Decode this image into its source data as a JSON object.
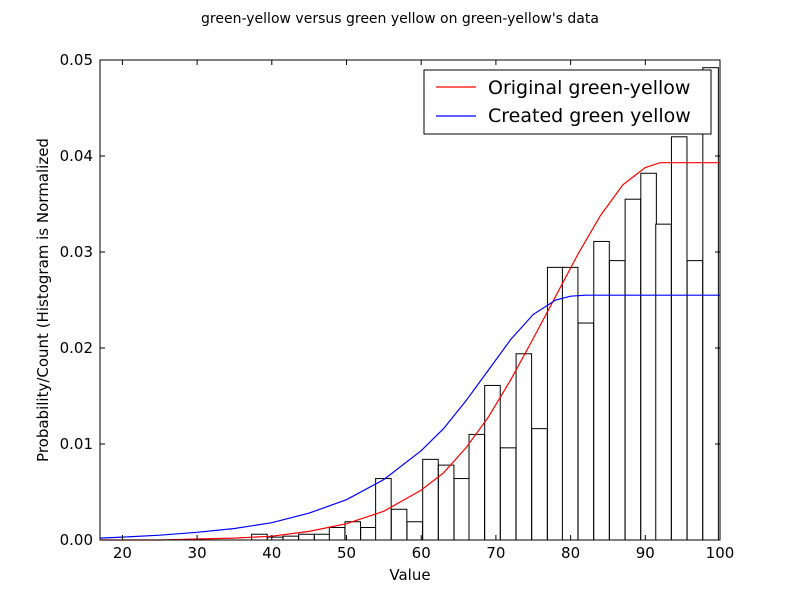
{
  "chart_data": {
    "type": "histogram with fitted curves",
    "title": "green-yellow versus green yellow on green-yellow's data",
    "xlabel": "Value",
    "ylabel": "Probability/Count (Histogram is Normalized",
    "xlim": [
      17,
      100
    ],
    "ylim": [
      0,
      0.05
    ],
    "xticks": [
      "20",
      "30",
      "40",
      "50",
      "60",
      "70",
      "80",
      "90",
      "100"
    ],
    "yticks": [
      "0.00",
      "0.01",
      "0.02",
      "0.03",
      "0.04",
      "0.05"
    ],
    "legend": {
      "placement": "top-right"
    },
    "histogram": {
      "bin_width": 2.08,
      "bins": [
        {
          "left": 37.3,
          "height": 0.0006
        },
        {
          "left": 39.4,
          "height": 0.0003
        },
        {
          "left": 41.5,
          "height": 0.0004
        },
        {
          "left": 43.6,
          "height": 0.0006
        },
        {
          "left": 45.7,
          "height": 0.0006
        },
        {
          "left": 47.7,
          "height": 0.0013
        },
        {
          "left": 49.8,
          "height": 0.0019
        },
        {
          "left": 51.9,
          "height": 0.0013
        },
        {
          "left": 53.9,
          "height": 0.0064
        },
        {
          "left": 56.0,
          "height": 0.0032
        },
        {
          "left": 58.1,
          "height": 0.0019
        },
        {
          "left": 60.2,
          "height": 0.0084
        },
        {
          "left": 62.3,
          "height": 0.0078
        },
        {
          "left": 64.4,
          "height": 0.0064
        },
        {
          "left": 66.4,
          "height": 0.011
        },
        {
          "left": 68.5,
          "height": 0.0161
        },
        {
          "left": 70.6,
          "height": 0.0096
        },
        {
          "left": 72.7,
          "height": 0.0194
        },
        {
          "left": 74.8,
          "height": 0.0116
        },
        {
          "left": 76.9,
          "height": 0.0284
        },
        {
          "left": 78.9,
          "height": 0.0284
        },
        {
          "left": 81.0,
          "height": 0.0226
        },
        {
          "left": 83.1,
          "height": 0.0311
        },
        {
          "left": 85.2,
          "height": 0.0291
        },
        {
          "left": 87.3,
          "height": 0.0355
        },
        {
          "left": 89.4,
          "height": 0.0382
        },
        {
          "left": 91.4,
          "height": 0.0329
        },
        {
          "left": 93.5,
          "height": 0.042
        },
        {
          "left": 95.6,
          "height": 0.0291
        },
        {
          "left": 97.7,
          "height": 0.0492
        }
      ]
    },
    "series": [
      {
        "name": "Original green-yellow",
        "color": "#ff0000",
        "x": [
          17,
          20,
          25,
          30,
          35,
          40,
          45,
          50,
          55,
          60,
          63,
          66,
          69,
          72,
          75,
          78,
          81,
          84,
          87,
          90,
          92,
          94,
          96,
          100
        ],
        "y": [
          0.0,
          0.0,
          0.0,
          0.0001,
          0.0002,
          0.0004,
          0.0009,
          0.0017,
          0.003,
          0.0052,
          0.007,
          0.0096,
          0.0128,
          0.0167,
          0.021,
          0.0254,
          0.0298,
          0.0338,
          0.037,
          0.0388,
          0.0393,
          0.0393,
          0.0393,
          0.0393
        ]
      },
      {
        "name": "Created green yellow",
        "color": "#0000ff",
        "x": [
          17,
          20,
          25,
          30,
          35,
          40,
          45,
          50,
          55,
          60,
          63,
          66,
          69,
          72,
          75,
          78,
          80,
          82,
          84,
          90,
          100
        ],
        "y": [
          0.0002,
          0.0003,
          0.0005,
          0.0008,
          0.0012,
          0.0018,
          0.0028,
          0.0042,
          0.0063,
          0.0093,
          0.0116,
          0.0145,
          0.0177,
          0.0209,
          0.0235,
          0.025,
          0.0254,
          0.0255,
          0.0255,
          0.0255,
          0.0255
        ]
      }
    ]
  }
}
